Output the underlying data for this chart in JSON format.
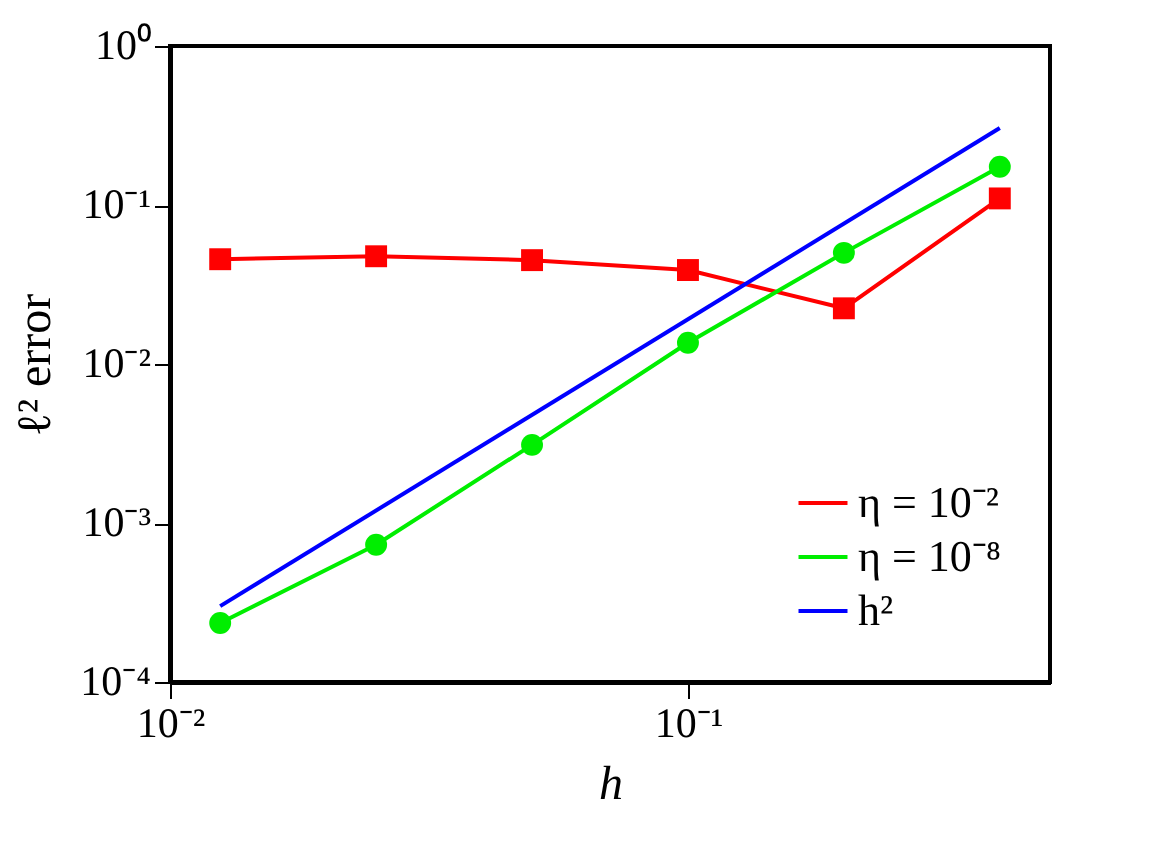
{
  "chart_data": {
    "type": "line",
    "xlabel": "h",
    "ylabel": "ℓ² error",
    "log": "xy",
    "xlim": [
      0.01,
      0.5
    ],
    "ylim": [
      0.0001,
      1
    ],
    "xticks": [
      {
        "value": 0.01,
        "label": "10⁻²"
      },
      {
        "value": 0.1,
        "label": "10⁻¹"
      }
    ],
    "yticks": [
      {
        "value": 0.0001,
        "label": "10⁻⁴"
      },
      {
        "value": 0.001,
        "label": "10⁻³"
      },
      {
        "value": 0.01,
        "label": "10⁻²"
      },
      {
        "value": 0.1,
        "label": "10⁻¹"
      },
      {
        "value": 1,
        "label": "10⁰"
      }
    ],
    "grid": false,
    "legend": "bottom right",
    "series": [
      {
        "name": "η = 10⁻²",
        "color": "#ff0000",
        "marker": "square",
        "x": [
          0.0125,
          0.025,
          0.05,
          0.1,
          0.2,
          0.4
        ],
        "values": [
          0.0456,
          0.0476,
          0.045,
          0.039,
          0.0224,
          0.11
        ]
      },
      {
        "name": "η = 10⁻⁸",
        "color": "#00ee00",
        "marker": "circle",
        "x": [
          0.0125,
          0.025,
          0.05,
          0.1,
          0.2,
          0.4
        ],
        "values": [
          0.000235,
          0.00073,
          0.0031,
          0.0136,
          0.05,
          0.174
        ]
      },
      {
        "name": "h²",
        "color": "#0000ff",
        "marker": "none",
        "x": [
          0.0125,
          0.4
        ],
        "values": [
          0.0003,
          0.305
        ]
      }
    ]
  }
}
